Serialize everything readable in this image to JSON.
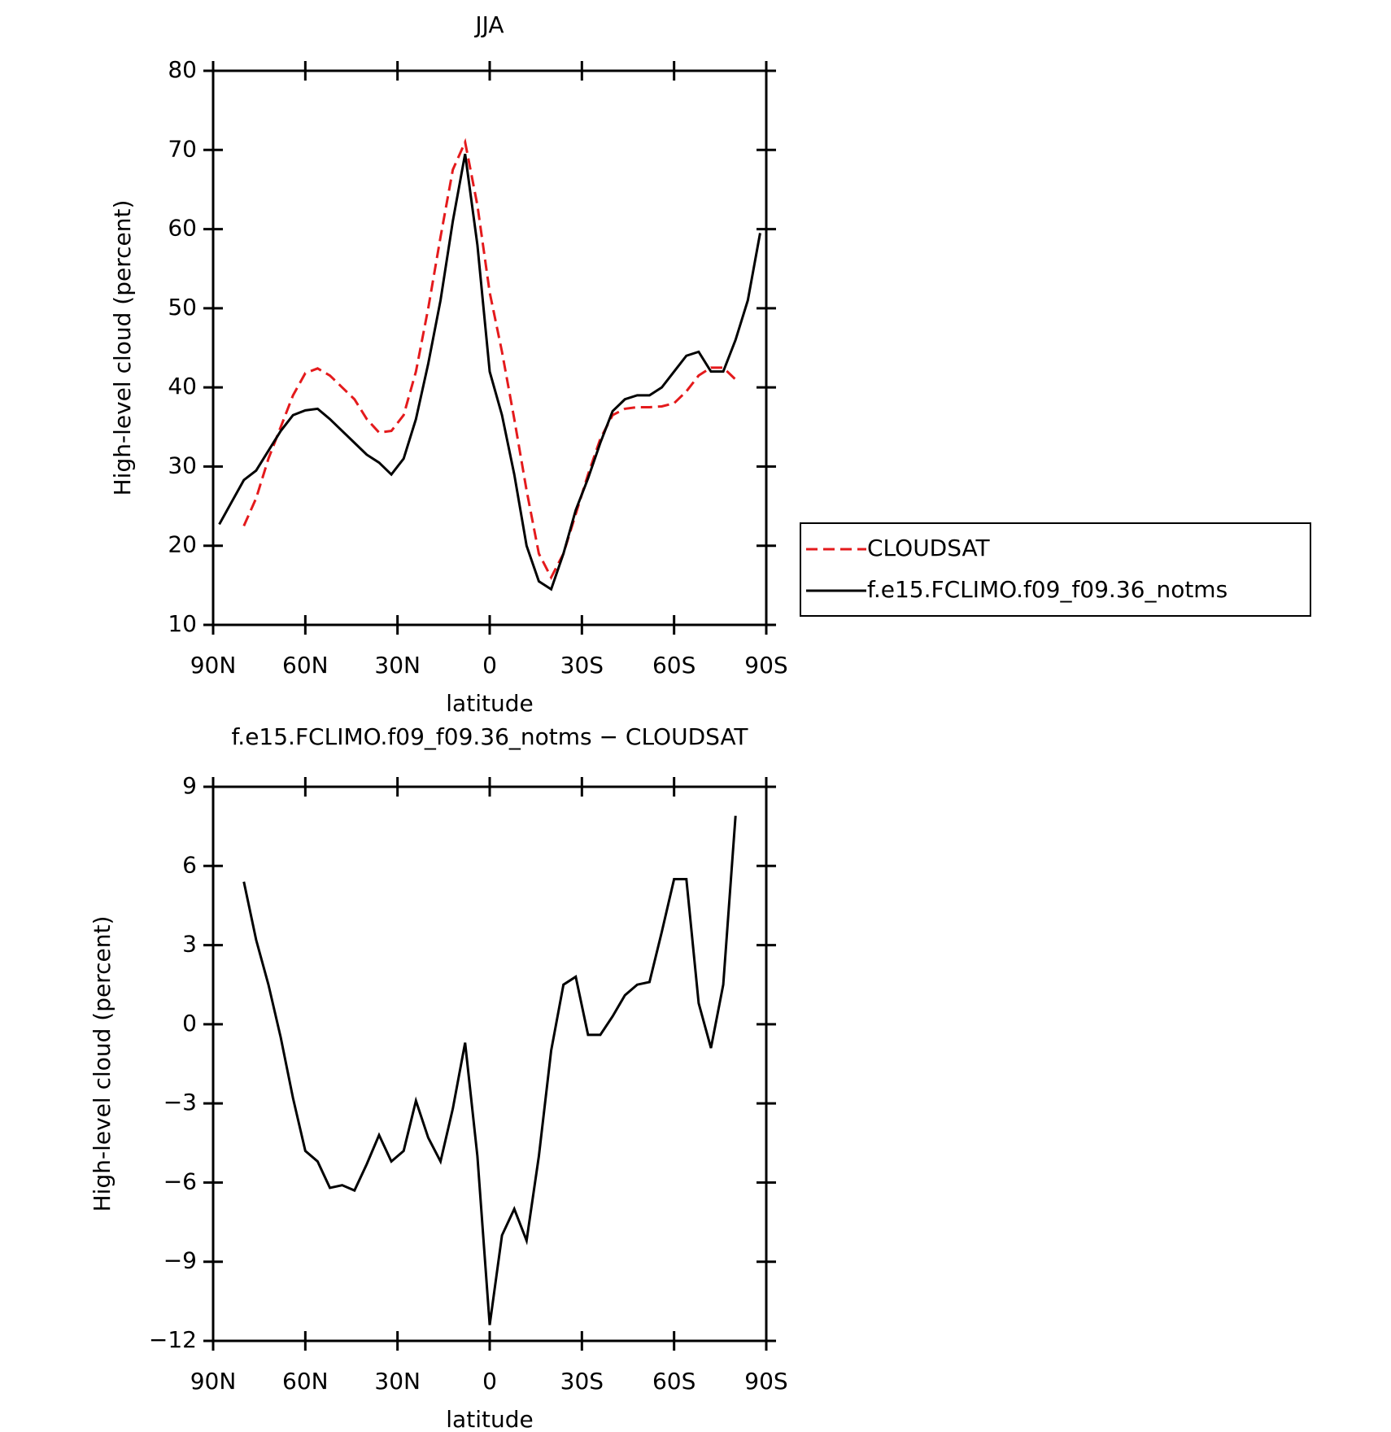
{
  "chart_data": [
    {
      "type": "line",
      "title": "JJA",
      "xlabel": "latitude",
      "ylabel": "High-level cloud (percent)",
      "x": [
        88,
        84,
        80,
        76,
        72,
        68,
        64,
        60,
        56,
        52,
        48,
        44,
        40,
        36,
        32,
        28,
        24,
        20,
        16,
        12,
        8,
        4,
        0,
        -4,
        -8,
        -12,
        -16,
        -20,
        -24,
        -28,
        -32,
        -36,
        -40,
        -44,
        -48,
        -52,
        -56,
        -60,
        -64,
        -68,
        -72,
        -76,
        -80,
        -84,
        -88
      ],
      "xlim": [
        90,
        -90
      ],
      "xticks": [
        {
          "value": 90,
          "label": "90N"
        },
        {
          "value": 60,
          "label": "60N"
        },
        {
          "value": 30,
          "label": "30N"
        },
        0,
        {
          "value": -30,
          "label": "30S"
        },
        {
          "value": -60,
          "label": "60S"
        },
        {
          "value": -90,
          "label": "90S"
        }
      ],
      "ylim": [
        10,
        80
      ],
      "yticks": [
        10,
        20,
        30,
        40,
        50,
        60,
        70,
        80
      ],
      "legend": "right",
      "series": [
        {
          "name": "CLOUDSAT",
          "color": "#e41a1c",
          "dash": true,
          "values": [
            null,
            null,
            22.5,
            26,
            31,
            35,
            39,
            41.8,
            42.4,
            41.5,
            40,
            38.5,
            36,
            34.3,
            34.5,
            36.5,
            42,
            50,
            59,
            67.5,
            71,
            63,
            52,
            44.5,
            36,
            27,
            19,
            16,
            19,
            24,
            29,
            33.5,
            36.5,
            37.3,
            37.5,
            37.5,
            37.6,
            38,
            39.5,
            41.5,
            42.5,
            42.5,
            41,
            null,
            null
          ]
        },
        {
          "name": "f.e15.FCLIMO.f09_f09.36_notms",
          "color": "#000000",
          "dash": false,
          "values": [
            22.7,
            25.5,
            28.3,
            29.5,
            32,
            34.5,
            36.5,
            37.1,
            37.3,
            36,
            34.5,
            33,
            31.5,
            30.5,
            29,
            31,
            36,
            43,
            51,
            61,
            69.5,
            58,
            42,
            36.5,
            29,
            20,
            15.5,
            14.5,
            19,
            24.5,
            28.5,
            33,
            37,
            38.5,
            39,
            39,
            40,
            42,
            44,
            44.5,
            42,
            42,
            46,
            51,
            59.5
          ]
        }
      ]
    },
    {
      "type": "line",
      "title": "f.e15.FCLIMO.f09_f09.36_notms − CLOUDSAT",
      "xlabel": "latitude",
      "ylabel": "High-level cloud (percent)",
      "x": [
        80,
        76,
        72,
        68,
        64,
        60,
        56,
        52,
        48,
        44,
        40,
        36,
        32,
        28,
        24,
        20,
        16,
        12,
        8,
        4,
        0,
        -4,
        -8,
        -12,
        -16,
        -20,
        -24,
        -28,
        -32,
        -36,
        -40,
        -44,
        -48,
        -52,
        -56,
        -60,
        -64,
        -68,
        -72,
        -76,
        -80
      ],
      "xlim": [
        90,
        -90
      ],
      "xticks": [
        {
          "value": 90,
          "label": "90N"
        },
        {
          "value": 60,
          "label": "60N"
        },
        {
          "value": 30,
          "label": "30N"
        },
        0,
        {
          "value": -30,
          "label": "30S"
        },
        {
          "value": -60,
          "label": "60S"
        },
        {
          "value": -90,
          "label": "90S"
        }
      ],
      "ylim": [
        -12,
        9
      ],
      "yticks": [
        {
          "value": -12,
          "label": "−12"
        },
        {
          "value": -9,
          "label": "−9"
        },
        {
          "value": -6,
          "label": "−6"
        },
        {
          "value": -3,
          "label": "−3"
        },
        0,
        3,
        6,
        9
      ],
      "series": [
        {
          "color": "#000000",
          "dash": false,
          "values": [
            5.4,
            3.2,
            1.5,
            -0.5,
            -2.8,
            -4.8,
            -5.2,
            -6.2,
            -6.1,
            -6.3,
            -5.3,
            -4.2,
            -5.2,
            -4.8,
            -2.9,
            -4.3,
            -5.2,
            -3.2,
            -0.7,
            -5,
            -11.4,
            -8,
            -7,
            -8.2,
            -5,
            -1,
            1.5,
            1.8,
            -0.4,
            -0.4,
            0.3,
            1.1,
            1.5,
            1.6,
            3.5,
            5.5,
            5.5,
            0.8,
            -0.9,
            1.5,
            7.9
          ]
        }
      ]
    }
  ]
}
